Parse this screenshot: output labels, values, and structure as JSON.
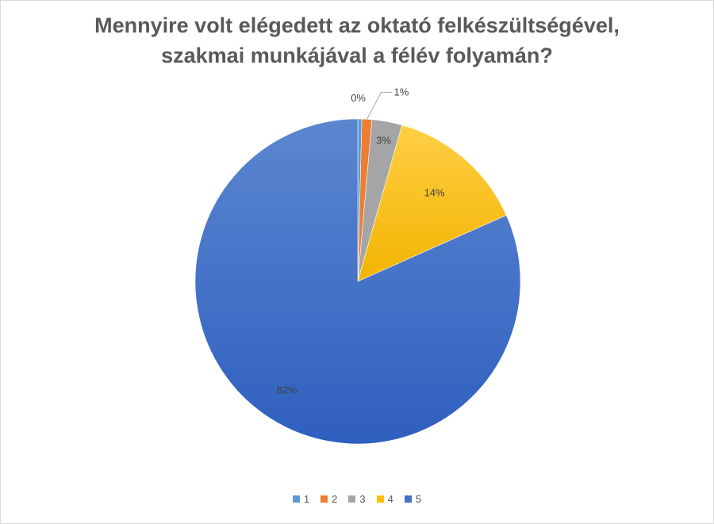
{
  "chart_data": {
    "type": "pie",
    "title_lines": [
      "Mennyire volt elégedett az oktató felkészültségével,",
      "szakmai munkájával a félév folyamán?"
    ],
    "categories": [
      "1",
      "2",
      "3",
      "4",
      "5"
    ],
    "values": [
      0.4,
      1,
      3,
      14,
      82
    ],
    "data_labels": [
      "0%",
      "1%",
      "3%",
      "14%",
      "82%"
    ],
    "colors": [
      "#5b9bd5",
      "#ed7d31",
      "#a5a5a5",
      "#ffc000",
      "#4472c4"
    ],
    "legend_position": "bottom",
    "start_angle_deg": 0,
    "direction": "clockwise"
  }
}
